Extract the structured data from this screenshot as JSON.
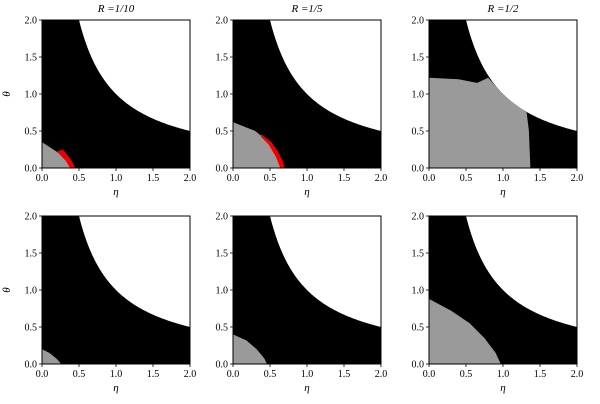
{
  "figure": {
    "column_titles": [
      "R =1/10",
      "R =1/5",
      "R =1/2"
    ],
    "xlabel": "η",
    "ylabel": "θ"
  },
  "chart_data": [
    {
      "type": "area",
      "title": "R =1/10",
      "xlabel": "η",
      "ylabel": "θ",
      "xlim": [
        0,
        2
      ],
      "ylim": [
        0,
        2
      ],
      "x_ticks": [
        "0.0",
        "0.5",
        "1.0",
        "1.5",
        "2.0"
      ],
      "y_ticks": [
        "0.0",
        "0.5",
        "1.0",
        "1.5",
        "2.0"
      ],
      "colors": {
        "region": "#000000",
        "gray": "#9a9a9a",
        "red": "#ee0000",
        "background": "#ffffff"
      },
      "boundary": {
        "equation": "η·θ = 1",
        "x": [
          0.5,
          0.75,
          1.0,
          1.25,
          1.5,
          1.75,
          2.0
        ],
        "y": [
          2.0,
          1.33,
          1.0,
          0.8,
          0.67,
          0.57,
          0.5
        ]
      },
      "series": [
        {
          "color": "gray",
          "polygon": [
            [
              0,
              0
            ],
            [
              0,
              0.35
            ],
            [
              0.2,
              0.22
            ],
            [
              0.35,
              0.1
            ],
            [
              0.42,
              0
            ]
          ]
        },
        {
          "color": "red",
          "polygon": [
            [
              0.28,
              0.25
            ],
            [
              0.34,
              0.18
            ],
            [
              0.4,
              0.1
            ],
            [
              0.45,
              0
            ],
            [
              0.38,
              0
            ],
            [
              0.32,
              0.1
            ],
            [
              0.24,
              0.18
            ],
            [
              0.2,
              0.22
            ]
          ]
        }
      ]
    },
    {
      "type": "area",
      "title": "R =1/5",
      "xlabel": "η",
      "ylabel": "θ",
      "xlim": [
        0,
        2
      ],
      "ylim": [
        0,
        2
      ],
      "x_ticks": [
        "0.0",
        "0.5",
        "1.0",
        "1.5",
        "2.0"
      ],
      "y_ticks": [
        "0.0",
        "0.5",
        "1.0",
        "1.5",
        "2.0"
      ],
      "colors": {
        "region": "#000000",
        "gray": "#9a9a9a",
        "red": "#ee0000",
        "background": "#ffffff"
      },
      "boundary": {
        "equation": "η·θ = 1",
        "x": [
          0.5,
          0.75,
          1.0,
          1.25,
          1.5,
          1.75,
          2.0
        ],
        "y": [
          2.0,
          1.33,
          1.0,
          0.8,
          0.67,
          0.57,
          0.5
        ]
      },
      "series": [
        {
          "color": "gray",
          "polygon": [
            [
              0,
              0
            ],
            [
              0,
              0.62
            ],
            [
              0.3,
              0.5
            ],
            [
              0.45,
              0.38
            ],
            [
              0.55,
              0.22
            ],
            [
              0.62,
              0.1
            ],
            [
              0.66,
              0
            ]
          ]
        },
        {
          "color": "red",
          "polygon": [
            [
              0.38,
              0.46
            ],
            [
              0.52,
              0.35
            ],
            [
              0.61,
              0.22
            ],
            [
              0.67,
              0.1
            ],
            [
              0.7,
              0
            ],
            [
              0.64,
              0
            ],
            [
              0.58,
              0.15
            ],
            [
              0.48,
              0.32
            ],
            [
              0.38,
              0.42
            ]
          ]
        }
      ]
    },
    {
      "type": "area",
      "title": "R =1/2",
      "xlabel": "η",
      "ylabel": "θ",
      "xlim": [
        0,
        2
      ],
      "ylim": [
        0,
        2
      ],
      "x_ticks": [
        "0.0",
        "0.5",
        "1.0",
        "1.5",
        "2.0"
      ],
      "y_ticks": [
        "0.0",
        "0.5",
        "1.0",
        "1.5",
        "2.0"
      ],
      "colors": {
        "region": "#000000",
        "gray": "#9a9a9a",
        "red": "#ee0000",
        "background": "#ffffff"
      },
      "boundary": {
        "equation": "η·θ = 1",
        "x": [
          0.5,
          0.75,
          1.0,
          1.25,
          1.5,
          1.75,
          2.0
        ],
        "y": [
          2.0,
          1.33,
          1.0,
          0.8,
          0.67,
          0.57,
          0.5
        ]
      },
      "series": [
        {
          "color": "gray",
          "polygon": [
            [
              0,
              0
            ],
            [
              0,
              1.22
            ],
            [
              0.4,
              1.2
            ],
            [
              0.65,
              1.15
            ],
            [
              0.8,
              1.22
            ],
            [
              0.95,
              1.05
            ],
            [
              1.1,
              0.91
            ],
            [
              1.25,
              0.8
            ],
            [
              1.32,
              0.75
            ],
            [
              1.35,
              0.5
            ],
            [
              1.37,
              0
            ]
          ]
        }
      ]
    },
    {
      "type": "area",
      "xlabel": "η",
      "ylabel": "θ",
      "xlim": [
        0,
        2
      ],
      "ylim": [
        0,
        2
      ],
      "x_ticks": [
        "0.0",
        "0.5",
        "1.0",
        "1.5",
        "2.0"
      ],
      "y_ticks": [
        "0.0",
        "0.5",
        "1.0",
        "1.5",
        "2.0"
      ],
      "colors": {
        "region": "#000000",
        "gray": "#9a9a9a",
        "red": "#ee0000",
        "background": "#ffffff"
      },
      "boundary": {
        "equation": "η·θ = 1",
        "x": [
          0.5,
          0.75,
          1.0,
          1.25,
          1.5,
          1.75,
          2.0
        ],
        "y": [
          2.0,
          1.33,
          1.0,
          0.8,
          0.67,
          0.57,
          0.5
        ]
      },
      "series": [
        {
          "color": "gray",
          "polygon": [
            [
              0,
              0
            ],
            [
              0,
              0.2
            ],
            [
              0.1,
              0.15
            ],
            [
              0.2,
              0.07
            ],
            [
              0.26,
              0
            ]
          ]
        }
      ]
    },
    {
      "type": "area",
      "xlabel": "η",
      "ylabel": "θ",
      "xlim": [
        0,
        2
      ],
      "ylim": [
        0,
        2
      ],
      "x_ticks": [
        "0.0",
        "0.5",
        "1.0",
        "1.5",
        "2.0"
      ],
      "y_ticks": [
        "0.0",
        "0.5",
        "1.0",
        "1.5",
        "2.0"
      ],
      "colors": {
        "region": "#000000",
        "gray": "#9a9a9a",
        "red": "#ee0000",
        "background": "#ffffff"
      },
      "boundary": {
        "equation": "η·θ = 1",
        "x": [
          0.5,
          0.75,
          1.0,
          1.25,
          1.5,
          1.75,
          2.0
        ],
        "y": [
          2.0,
          1.33,
          1.0,
          0.8,
          0.67,
          0.57,
          0.5
        ]
      },
      "series": [
        {
          "color": "gray",
          "polygon": [
            [
              0,
              0
            ],
            [
              0,
              0.4
            ],
            [
              0.18,
              0.32
            ],
            [
              0.32,
              0.2
            ],
            [
              0.42,
              0.08
            ],
            [
              0.46,
              0
            ]
          ]
        }
      ]
    },
    {
      "type": "area",
      "xlabel": "η",
      "ylabel": "θ",
      "xlim": [
        0,
        2
      ],
      "ylim": [
        0,
        2
      ],
      "x_ticks": [
        "0.0",
        "0.5",
        "1.0",
        "1.5",
        "2.0"
      ],
      "y_ticks": [
        "0.0",
        "0.5",
        "1.0",
        "1.5",
        "2.0"
      ],
      "colors": {
        "region": "#000000",
        "gray": "#9a9a9a",
        "red": "#ee0000",
        "background": "#ffffff"
      },
      "boundary": {
        "equation": "η·θ = 1",
        "x": [
          0.5,
          0.75,
          1.0,
          1.25,
          1.5,
          1.75,
          2.0
        ],
        "y": [
          2.0,
          1.33,
          1.0,
          0.8,
          0.67,
          0.57,
          0.5
        ]
      },
      "series": [
        {
          "color": "gray",
          "polygon": [
            [
              0,
              0
            ],
            [
              0,
              0.88
            ],
            [
              0.3,
              0.72
            ],
            [
              0.55,
              0.55
            ],
            [
              0.75,
              0.35
            ],
            [
              0.9,
              0.15
            ],
            [
              0.97,
              0
            ]
          ]
        }
      ]
    }
  ]
}
